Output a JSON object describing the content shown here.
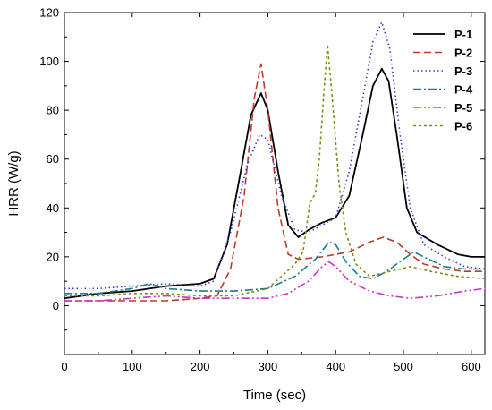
{
  "chart_data": {
    "type": "line",
    "title": "",
    "xlabel": "Time (sec)",
    "ylabel": "HRR (W/g)",
    "xlim": [
      0,
      620
    ],
    "ylim": [
      -20,
      120
    ],
    "xticks": [
      0,
      100,
      200,
      300,
      400,
      500,
      600
    ],
    "yticks": [
      0,
      20,
      40,
      60,
      80,
      100,
      120
    ],
    "grid": false,
    "legend_position": "top-right",
    "series": [
      {
        "name": "P-1",
        "color": "#000000",
        "dash": "solid",
        "points": [
          [
            0,
            3
          ],
          [
            50,
            5
          ],
          [
            100,
            6
          ],
          [
            150,
            8
          ],
          [
            200,
            9
          ],
          [
            220,
            11
          ],
          [
            240,
            25
          ],
          [
            260,
            55
          ],
          [
            275,
            78
          ],
          [
            290,
            87
          ],
          [
            300,
            80
          ],
          [
            315,
            55
          ],
          [
            330,
            33
          ],
          [
            345,
            28
          ],
          [
            360,
            31
          ],
          [
            380,
            34
          ],
          [
            400,
            36
          ],
          [
            420,
            45
          ],
          [
            440,
            70
          ],
          [
            455,
            90
          ],
          [
            468,
            97
          ],
          [
            478,
            92
          ],
          [
            490,
            70
          ],
          [
            505,
            40
          ],
          [
            520,
            30
          ],
          [
            550,
            25
          ],
          [
            580,
            21
          ],
          [
            600,
            20
          ],
          [
            620,
            20
          ]
        ]
      },
      {
        "name": "P-2",
        "color": "#c0392b",
        "dash": "8,4",
        "points": [
          [
            0,
            2
          ],
          [
            50,
            2
          ],
          [
            100,
            2
          ],
          [
            150,
            2
          ],
          [
            200,
            3
          ],
          [
            225,
            4
          ],
          [
            245,
            15
          ],
          [
            265,
            45
          ],
          [
            280,
            85
          ],
          [
            290,
            99
          ],
          [
            300,
            80
          ],
          [
            315,
            40
          ],
          [
            330,
            21
          ],
          [
            345,
            19
          ],
          [
            380,
            20
          ],
          [
            420,
            22
          ],
          [
            450,
            26
          ],
          [
            470,
            28
          ],
          [
            490,
            26
          ],
          [
            510,
            21
          ],
          [
            530,
            17
          ],
          [
            560,
            15
          ],
          [
            590,
            14
          ],
          [
            620,
            14
          ]
        ]
      },
      {
        "name": "P-3",
        "color": "#3a3ad0",
        "dash": "1.5,3",
        "points": [
          [
            0,
            7
          ],
          [
            50,
            7
          ],
          [
            100,
            8
          ],
          [
            150,
            9
          ],
          [
            200,
            8
          ],
          [
            220,
            10
          ],
          [
            245,
            30
          ],
          [
            270,
            58
          ],
          [
            288,
            70
          ],
          [
            300,
            68
          ],
          [
            320,
            45
          ],
          [
            340,
            31
          ],
          [
            360,
            30
          ],
          [
            380,
            33
          ],
          [
            400,
            36
          ],
          [
            420,
            55
          ],
          [
            440,
            85
          ],
          [
            455,
            108
          ],
          [
            468,
            116
          ],
          [
            480,
            105
          ],
          [
            495,
            70
          ],
          [
            510,
            40
          ],
          [
            530,
            25
          ],
          [
            560,
            20
          ],
          [
            590,
            16
          ],
          [
            620,
            15
          ]
        ]
      },
      {
        "name": "P-4",
        "color": "#1f7a8c",
        "dash": "9,3,2,3",
        "points": [
          [
            0,
            5
          ],
          [
            50,
            5
          ],
          [
            100,
            7
          ],
          [
            125,
            9
          ],
          [
            150,
            7
          ],
          [
            200,
            6
          ],
          [
            250,
            6
          ],
          [
            300,
            7
          ],
          [
            340,
            12
          ],
          [
            370,
            19
          ],
          [
            390,
            26
          ],
          [
            400,
            25
          ],
          [
            415,
            18
          ],
          [
            435,
            12
          ],
          [
            455,
            11
          ],
          [
            475,
            14
          ],
          [
            500,
            19
          ],
          [
            515,
            22
          ],
          [
            530,
            20
          ],
          [
            560,
            16
          ],
          [
            590,
            15
          ],
          [
            620,
            15
          ]
        ]
      },
      {
        "name": "P-5",
        "color": "#cc33cc",
        "dash": "9,3,2,3,2,3",
        "points": [
          [
            0,
            2
          ],
          [
            50,
            2
          ],
          [
            100,
            3
          ],
          [
            150,
            4
          ],
          [
            200,
            3
          ],
          [
            250,
            3
          ],
          [
            300,
            3
          ],
          [
            330,
            5
          ],
          [
            360,
            10
          ],
          [
            380,
            16
          ],
          [
            390,
            18
          ],
          [
            400,
            16
          ],
          [
            420,
            10
          ],
          [
            450,
            6
          ],
          [
            480,
            4
          ],
          [
            510,
            3
          ],
          [
            550,
            4
          ],
          [
            590,
            6
          ],
          [
            620,
            7
          ]
        ]
      },
      {
        "name": "P-6",
        "color": "#7a8c1a",
        "dash": "3,3",
        "points": [
          [
            0,
            4
          ],
          [
            50,
            4
          ],
          [
            100,
            5
          ],
          [
            150,
            5
          ],
          [
            200,
            4
          ],
          [
            250,
            4
          ],
          [
            300,
            7
          ],
          [
            320,
            12
          ],
          [
            340,
            17
          ],
          [
            352,
            22
          ],
          [
            362,
            42
          ],
          [
            370,
            46
          ],
          [
            376,
            60
          ],
          [
            382,
            85
          ],
          [
            388,
            107
          ],
          [
            395,
            85
          ],
          [
            405,
            50
          ],
          [
            415,
            30
          ],
          [
            430,
            17
          ],
          [
            450,
            12
          ],
          [
            480,
            14
          ],
          [
            510,
            16
          ],
          [
            540,
            14
          ],
          [
            580,
            12
          ],
          [
            620,
            11
          ]
        ]
      }
    ]
  }
}
